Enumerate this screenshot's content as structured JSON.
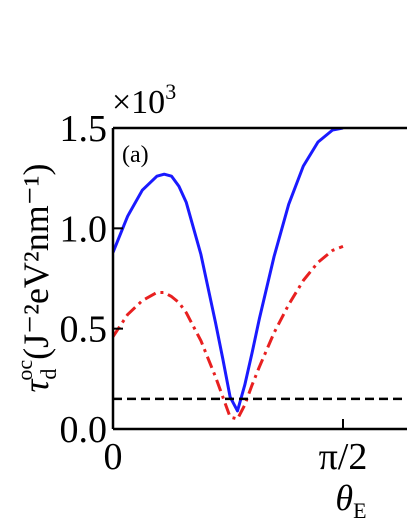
{
  "chart_data": {
    "type": "line",
    "panel_label": "(a)",
    "multiplier": {
      "base": "×10",
      "exponent": "3"
    },
    "xlabel": {
      "symbol": "θ",
      "subscript": "E"
    },
    "ylabel": {
      "symbol": "τ",
      "superscript": "oc",
      "subscript": "d",
      "units": "(J⁻²eV²nm⁻¹)"
    },
    "xlim": [
      0,
      1.5708
    ],
    "ylim": [
      0,
      1.5
    ],
    "x_ticks": [
      {
        "value": 0,
        "label": "0"
      },
      {
        "value": 1.5708,
        "label": "π/2"
      }
    ],
    "y_ticks": [
      {
        "value": 0.0,
        "label": "0.0"
      },
      {
        "value": 0.5,
        "label": "0.5"
      },
      {
        "value": 1.0,
        "label": "1.0"
      },
      {
        "value": 1.5,
        "label": "1.5"
      }
    ],
    "grid": false,
    "series": [
      {
        "style": "solid",
        "color": "#1a1aff",
        "x": [
          0,
          0.1,
          0.2,
          0.3,
          0.35,
          0.4,
          0.45,
          0.5,
          0.6,
          0.7,
          0.75,
          0.8,
          0.85,
          0.9,
          0.95,
          1.0,
          1.1,
          1.2,
          1.3,
          1.4,
          1.5,
          1.5708
        ],
        "y": [
          0.88,
          1.06,
          1.19,
          1.26,
          1.27,
          1.26,
          1.21,
          1.13,
          0.87,
          0.53,
          0.35,
          0.16,
          0.09,
          0.22,
          0.38,
          0.55,
          0.86,
          1.12,
          1.31,
          1.43,
          1.49,
          1.5
        ]
      },
      {
        "style": "dashdot",
        "color": "#e82020",
        "x": [
          0,
          0.1,
          0.2,
          0.3,
          0.35,
          0.4,
          0.45,
          0.5,
          0.6,
          0.7,
          0.75,
          0.8,
          0.85,
          0.9,
          0.95,
          1.0,
          1.1,
          1.2,
          1.3,
          1.4,
          1.5,
          1.5708
        ],
        "y": [
          0.46,
          0.57,
          0.64,
          0.68,
          0.68,
          0.66,
          0.63,
          0.58,
          0.44,
          0.26,
          0.16,
          0.06,
          0.05,
          0.12,
          0.22,
          0.31,
          0.48,
          0.62,
          0.74,
          0.83,
          0.89,
          0.91
        ]
      },
      {
        "style": "dashed",
        "color": "#000000",
        "x": [
          0,
          1.5708
        ],
        "y": [
          0.15,
          0.15
        ]
      }
    ]
  }
}
